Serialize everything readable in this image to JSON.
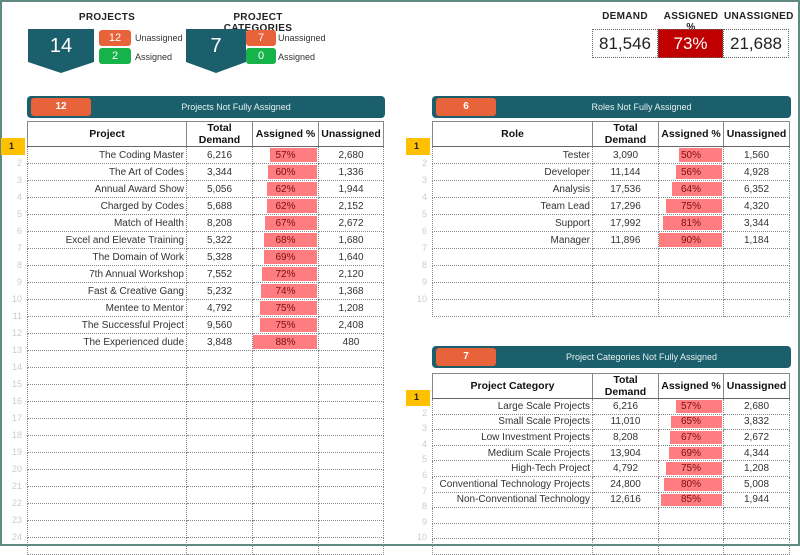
{
  "kpis": {
    "projects": {
      "title": "PROJECTS",
      "total": "14",
      "unassigned": "12",
      "unassigned_label": "Unassigned",
      "assigned": "2",
      "assigned_label": "Assigned"
    },
    "categories": {
      "title": "PROJECT CATEGORIES",
      "total": "7",
      "unassigned": "7",
      "unassigned_label": "Unassigned",
      "assigned": "0",
      "assigned_label": "Assigned"
    }
  },
  "totals": {
    "demand_label": "DEMAND",
    "assigned_label": "ASSIGNED %",
    "unassigned_label": "UNASSIGNED",
    "demand": "81,546",
    "assigned": "73%",
    "unassigned": "21,688"
  },
  "colors": {
    "teal": "#1a5f6b",
    "orange": "#e8623a",
    "green": "#16b34a",
    "red": "#c00000",
    "bar": "#ff7c80",
    "selected": "#ffc000"
  },
  "projects_table": {
    "count": "12",
    "title": "Projects Not Fully Assigned",
    "columns": [
      "Project",
      "Total Demand",
      "Assigned %",
      "Unassigned"
    ],
    "rows": [
      [
        "The Coding Master",
        "6,216",
        "57%",
        "2,680"
      ],
      [
        "The Art of Codes",
        "3,344",
        "60%",
        "1,336"
      ],
      [
        "Annual Award Show",
        "5,056",
        "62%",
        "1,944"
      ],
      [
        "Charged by Codes",
        "5,688",
        "62%",
        "2,152"
      ],
      [
        "Match of Health",
        "8,208",
        "67%",
        "2,672"
      ],
      [
        "Excel and Elevate Training",
        "5,322",
        "68%",
        "1,680"
      ],
      [
        "The Domain of Work",
        "5,328",
        "69%",
        "1,640"
      ],
      [
        "7th Annual Workshop",
        "7,552",
        "72%",
        "2,120"
      ],
      [
        "Fast & Creative Gang",
        "5,232",
        "74%",
        "1,368"
      ],
      [
        "Mentee to Mentor",
        "4,792",
        "75%",
        "1,208"
      ],
      [
        "The Successful Project",
        "9,560",
        "75%",
        "2,408"
      ],
      [
        "The Experienced dude",
        "3,848",
        "88%",
        "480"
      ]
    ]
  },
  "roles_table": {
    "count": "6",
    "title": "Roles Not Fully Assigned",
    "columns": [
      "Role",
      "Total Demand",
      "Assigned %",
      "Unassigned"
    ],
    "rows": [
      [
        "Tester",
        "3,090",
        "50%",
        "1,560"
      ],
      [
        "Developer",
        "11,144",
        "56%",
        "4,928"
      ],
      [
        "Analysis",
        "17,536",
        "64%",
        "6,352"
      ],
      [
        "Team Lead",
        "17,296",
        "75%",
        "4,320"
      ],
      [
        "Support",
        "17,992",
        "81%",
        "3,344"
      ],
      [
        "Manager",
        "11,896",
        "90%",
        "1,184"
      ]
    ]
  },
  "categories_table": {
    "count": "7",
    "title": "Project Categories Not Fully Assigned",
    "columns": [
      "Project Category",
      "Total Demand",
      "Assigned %",
      "Unassigned"
    ],
    "rows": [
      [
        "Large Scale Projects",
        "6,216",
        "57%",
        "2,680"
      ],
      [
        "Small Scale Projects",
        "11,010",
        "65%",
        "3,832"
      ],
      [
        "Low Investment Projects",
        "8,208",
        "67%",
        "2,672"
      ],
      [
        "Medium Scale Projects",
        "13,904",
        "69%",
        "4,344"
      ],
      [
        "High-Tech Project",
        "4,792",
        "75%",
        "1,208"
      ],
      [
        "Conventional Technology Projects",
        "24,800",
        "80%",
        "5,008"
      ],
      [
        "Non-Conventional Technology",
        "12,616",
        "85%",
        "1,944"
      ]
    ]
  }
}
